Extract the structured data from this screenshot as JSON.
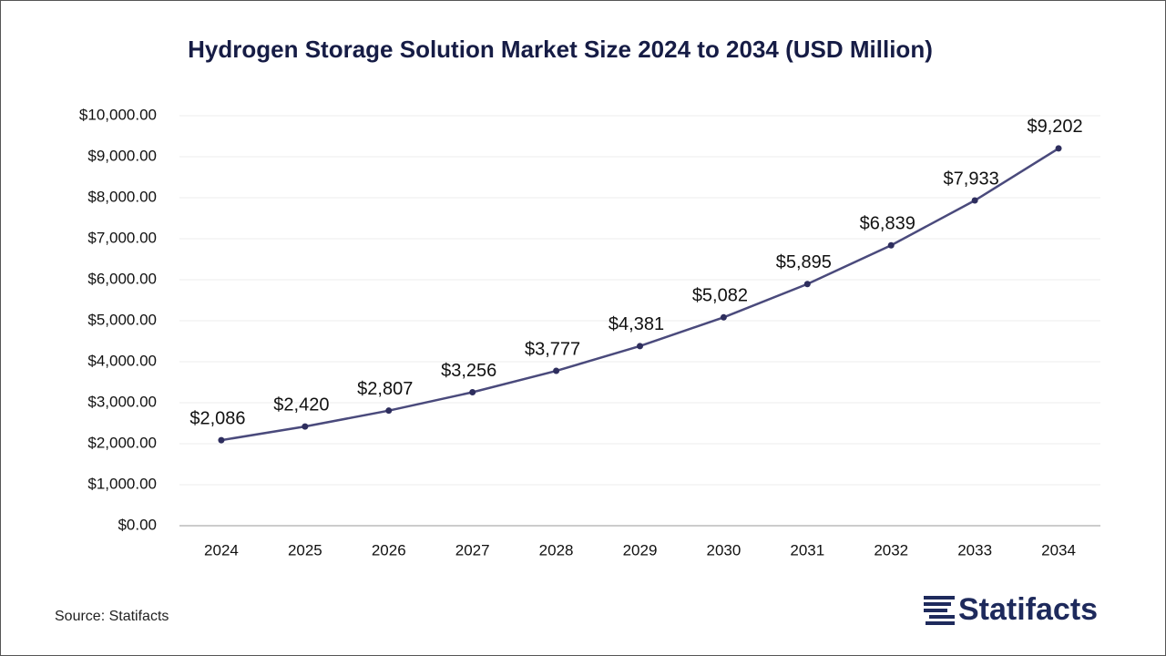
{
  "chart_data": {
    "type": "line",
    "title": "Hydrogen Storage Solution Market Size 2024 to 2034 (USD Million)",
    "categories": [
      "2024",
      "2025",
      "2026",
      "2027",
      "2028",
      "2029",
      "2030",
      "2031",
      "2032",
      "2033",
      "2034"
    ],
    "values": [
      2086,
      2420,
      2807,
      3256,
      3777,
      4381,
      5082,
      5895,
      6839,
      7933,
      9202
    ],
    "value_labels": [
      "$2,086",
      "$2,420",
      "$2,807",
      "$3,256",
      "$3,777",
      "$4,381",
      "$5,082",
      "$5,895",
      "$6,839",
      "$7,933",
      "$9,202"
    ],
    "color": "#4a4a7c",
    "ylim": [
      0,
      10000
    ],
    "yticks": [
      {
        "value": 0,
        "label": "$0.00"
      },
      {
        "value": 1000,
        "label": "$1,000.00"
      },
      {
        "value": 2000,
        "label": "$2,000.00"
      },
      {
        "value": 3000,
        "label": "$3,000.00"
      },
      {
        "value": 4000,
        "label": "$4,000.00"
      },
      {
        "value": 5000,
        "label": "$5,000.00"
      },
      {
        "value": 6000,
        "label": "$6,000.00"
      },
      {
        "value": 7000,
        "label": "$7,000.00"
      },
      {
        "value": 8000,
        "label": "$8,000.00"
      },
      {
        "value": 9000,
        "label": "$9,000.00"
      },
      {
        "value": 10000,
        "label": "$10,000.00"
      }
    ],
    "grid": true,
    "source": "Source: Statifacts",
    "brand": "Statifacts"
  }
}
